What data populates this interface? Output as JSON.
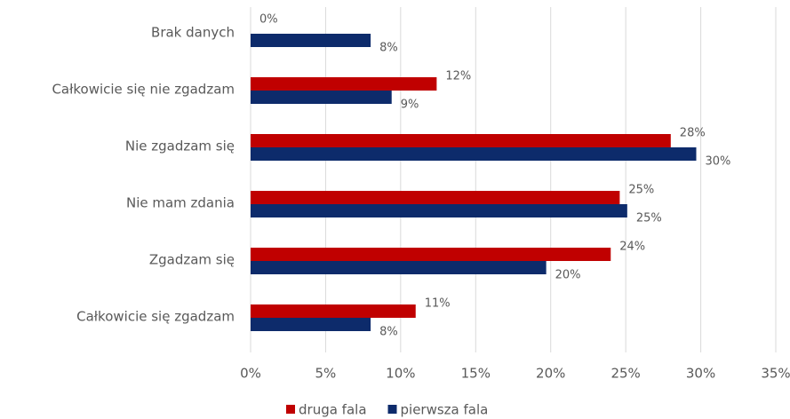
{
  "chart_data": {
    "type": "hbar",
    "categories": [
      "Brak danych",
      "Całkowicie się nie zgadzam",
      "Nie zgadzam się",
      "Nie mam zdania",
      "Zgadzam się",
      "Całkowicie się zgadzam"
    ],
    "series": [
      {
        "name": "druga fala",
        "color": "#c00000",
        "values": [
          0,
          12.4,
          28.0,
          24.6,
          24.0,
          11.0
        ],
        "value_labels": [
          "0%",
          "12%",
          "28%",
          "25%",
          "24%",
          "11%"
        ]
      },
      {
        "name": "pierwsza fala",
        "color": "#0d2b6b",
        "values": [
          8.0,
          9.4,
          29.7,
          25.1,
          19.7,
          8.0
        ],
        "value_labels": [
          "8%",
          "9%",
          "30%",
          "25%",
          "20%",
          "8%"
        ]
      }
    ],
    "xlim": [
      0,
      35
    ],
    "xticks": [
      {
        "value": 0,
        "label": "0%"
      },
      {
        "value": 5,
        "label": "5%"
      },
      {
        "value": 10,
        "label": "10%"
      },
      {
        "value": 15,
        "label": "15%"
      },
      {
        "value": 20,
        "label": "20%"
      },
      {
        "value": 25,
        "label": "25%"
      },
      {
        "value": 30,
        "label": "30%"
      },
      {
        "value": 35,
        "label": "35%"
      }
    ],
    "grid": true,
    "legend": "bottom"
  }
}
